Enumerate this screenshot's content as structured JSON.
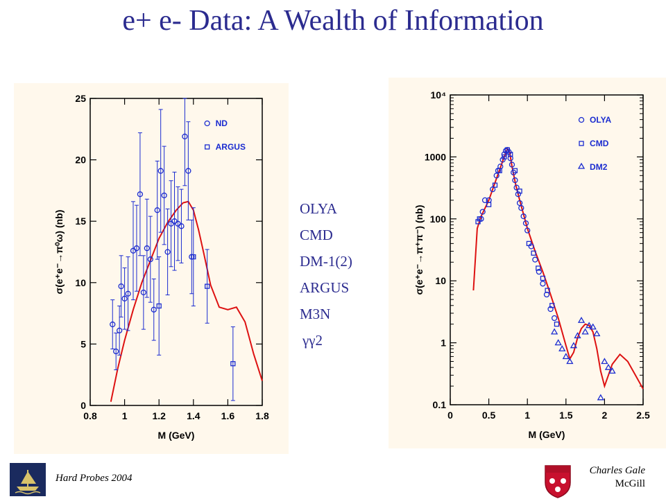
{
  "title": "e+ e- Data: A Wealth of Information",
  "experiments": [
    "OLYA",
    "CMD",
    "DM-1(2)",
    "ARGUS",
    "M3N",
    "γγ2"
  ],
  "footer": {
    "conference": "Hard Probes 2004",
    "author": "Charles Gale",
    "institution": "McGill"
  },
  "colors": {
    "title": "#2b2b8f",
    "curve": "#dd1111",
    "data": "#1a2bd0",
    "panel": "#fff8ec"
  },
  "chart_data": [
    {
      "type": "scatter",
      "xlabel": "M (GeV)",
      "ylabel": "σ(e⁺e⁻→π⁰ω) (nb)",
      "xlim": [
        0.8,
        1.8
      ],
      "ylim": [
        0,
        25
      ],
      "xticks": [
        "0.8",
        "1",
        "1.2",
        "1.4",
        "1.6",
        "1.8"
      ],
      "yticks": [
        "0",
        "5",
        "10",
        "15",
        "20",
        "25"
      ],
      "legend": [
        "ND",
        "ARGUS"
      ],
      "legend_position": "top-right",
      "series": [
        {
          "name": "ND",
          "marker": "circle",
          "x": [
            0.93,
            0.95,
            0.97,
            0.98,
            1.0,
            1.02,
            1.05,
            1.07,
            1.09,
            1.11,
            1.13,
            1.15,
            1.17,
            1.19,
            1.21,
            1.23,
            1.25,
            1.27,
            1.29,
            1.31,
            1.33,
            1.35,
            1.37,
            1.39
          ],
          "y": [
            6.6,
            4.4,
            6.1,
            9.7,
            8.7,
            9.1,
            12.6,
            12.8,
            17.2,
            9.2,
            12.8,
            11.9,
            7.8,
            15.9,
            19.1,
            17.1,
            12.5,
            14.8,
            15.0,
            14.8,
            14.6,
            21.9,
            19.1,
            12.1
          ],
          "err": [
            2.0,
            1.5,
            2.0,
            2.5,
            2.5,
            3.0,
            4.0,
            3.5,
            5.0,
            3.0,
            4.0,
            3.5,
            2.5,
            4.0,
            5.0,
            4.0,
            3.5,
            3.5,
            4.0,
            3.0,
            3.0,
            4.0,
            4.0,
            3.0
          ]
        },
        {
          "name": "ARGUS",
          "marker": "square",
          "x": [
            1.2,
            1.4,
            1.48,
            1.63
          ],
          "y": [
            8.1,
            12.1,
            9.7,
            3.4
          ],
          "err": [
            4.0,
            4.0,
            3.0,
            3.0
          ]
        }
      ],
      "curve": {
        "x": [
          0.92,
          0.96,
          1.0,
          1.05,
          1.1,
          1.15,
          1.2,
          1.25,
          1.3,
          1.34,
          1.37,
          1.4,
          1.43,
          1.46,
          1.5,
          1.55,
          1.6,
          1.65,
          1.7,
          1.75,
          1.8
        ],
        "y": [
          0.3,
          3.0,
          5.3,
          7.8,
          10.0,
          11.8,
          13.6,
          14.9,
          15.9,
          16.5,
          16.6,
          15.9,
          14.3,
          12.4,
          9.8,
          8.0,
          7.8,
          8.0,
          6.8,
          4.2,
          2.0
        ]
      }
    },
    {
      "type": "scatter",
      "xlabel": "M (GeV)",
      "ylabel": "σ(e⁺e⁻→π⁺π⁻) (nb)",
      "xlim": [
        0,
        2.5
      ],
      "ylim": [
        0.1,
        10000
      ],
      "yscale": "log",
      "xticks": [
        "0",
        "0.5",
        "1",
        "1.5",
        "2",
        "2.5"
      ],
      "yticks": [
        "0.1",
        "1",
        "10",
        "100",
        "1000",
        "10⁴"
      ],
      "legend": [
        "OLYA",
        "CMD",
        "DM2"
      ],
      "legend_position": "top-right",
      "series": [
        {
          "name": "OLYA",
          "marker": "circle",
          "x": [
            0.4,
            0.42,
            0.45,
            0.5,
            0.55,
            0.6,
            0.62,
            0.65,
            0.68,
            0.7,
            0.72,
            0.74,
            0.76,
            0.78,
            0.8,
            0.82,
            0.84,
            0.86,
            0.88,
            0.9,
            0.92,
            0.95,
            0.98,
            1.0,
            1.05,
            1.1,
            1.15,
            1.2,
            1.25,
            1.3,
            1.35
          ],
          "y": [
            100,
            130,
            200,
            200,
            300,
            500,
            600,
            700,
            900,
            1100,
            1250,
            1300,
            1200,
            950,
            750,
            560,
            420,
            320,
            250,
            180,
            150,
            110,
            85,
            65,
            36,
            22,
            14,
            9,
            6,
            3.5,
            2.5
          ]
        },
        {
          "name": "CMD",
          "marker": "square",
          "x": [
            0.36,
            0.38,
            0.5,
            0.58,
            0.64,
            0.7,
            0.74,
            0.78,
            0.84,
            0.9,
            1.02,
            1.08,
            1.14,
            1.2,
            1.26,
            1.32,
            1.38
          ],
          "y": [
            90,
            100,
            170,
            350,
            600,
            1000,
            1300,
            1100,
            600,
            280,
            40,
            28,
            16,
            11,
            7,
            4,
            2
          ]
        },
        {
          "name": "DM2",
          "marker": "triangle",
          "x": [
            1.35,
            1.4,
            1.45,
            1.5,
            1.55,
            1.6,
            1.65,
            1.7,
            1.75,
            1.8,
            1.85,
            1.9,
            1.95,
            2.0,
            2.05,
            2.1
          ],
          "y": [
            1.5,
            1.0,
            0.8,
            0.6,
            0.5,
            0.9,
            1.3,
            2.3,
            1.5,
            1.9,
            1.8,
            1.4,
            0.13,
            0.5,
            0.4,
            0.35
          ]
        }
      ],
      "curve": {
        "x": [
          0.3,
          0.35,
          0.4,
          0.5,
          0.6,
          0.7,
          0.74,
          0.77,
          0.8,
          0.85,
          0.9,
          1.0,
          1.1,
          1.2,
          1.3,
          1.4,
          1.5,
          1.55,
          1.6,
          1.65,
          1.7,
          1.75,
          1.8,
          1.85,
          1.9,
          1.95,
          2.0,
          2.05,
          2.1,
          2.2,
          2.3,
          2.4,
          2.5
        ],
        "y": [
          7,
          70,
          110,
          200,
          450,
          1000,
          1350,
          1200,
          700,
          350,
          200,
          70,
          30,
          14,
          6,
          2.5,
          0.9,
          0.55,
          0.7,
          1.2,
          1.7,
          2.0,
          1.9,
          1.5,
          0.8,
          0.35,
          0.2,
          0.3,
          0.45,
          0.65,
          0.5,
          0.3,
          0.18
        ]
      }
    }
  ]
}
